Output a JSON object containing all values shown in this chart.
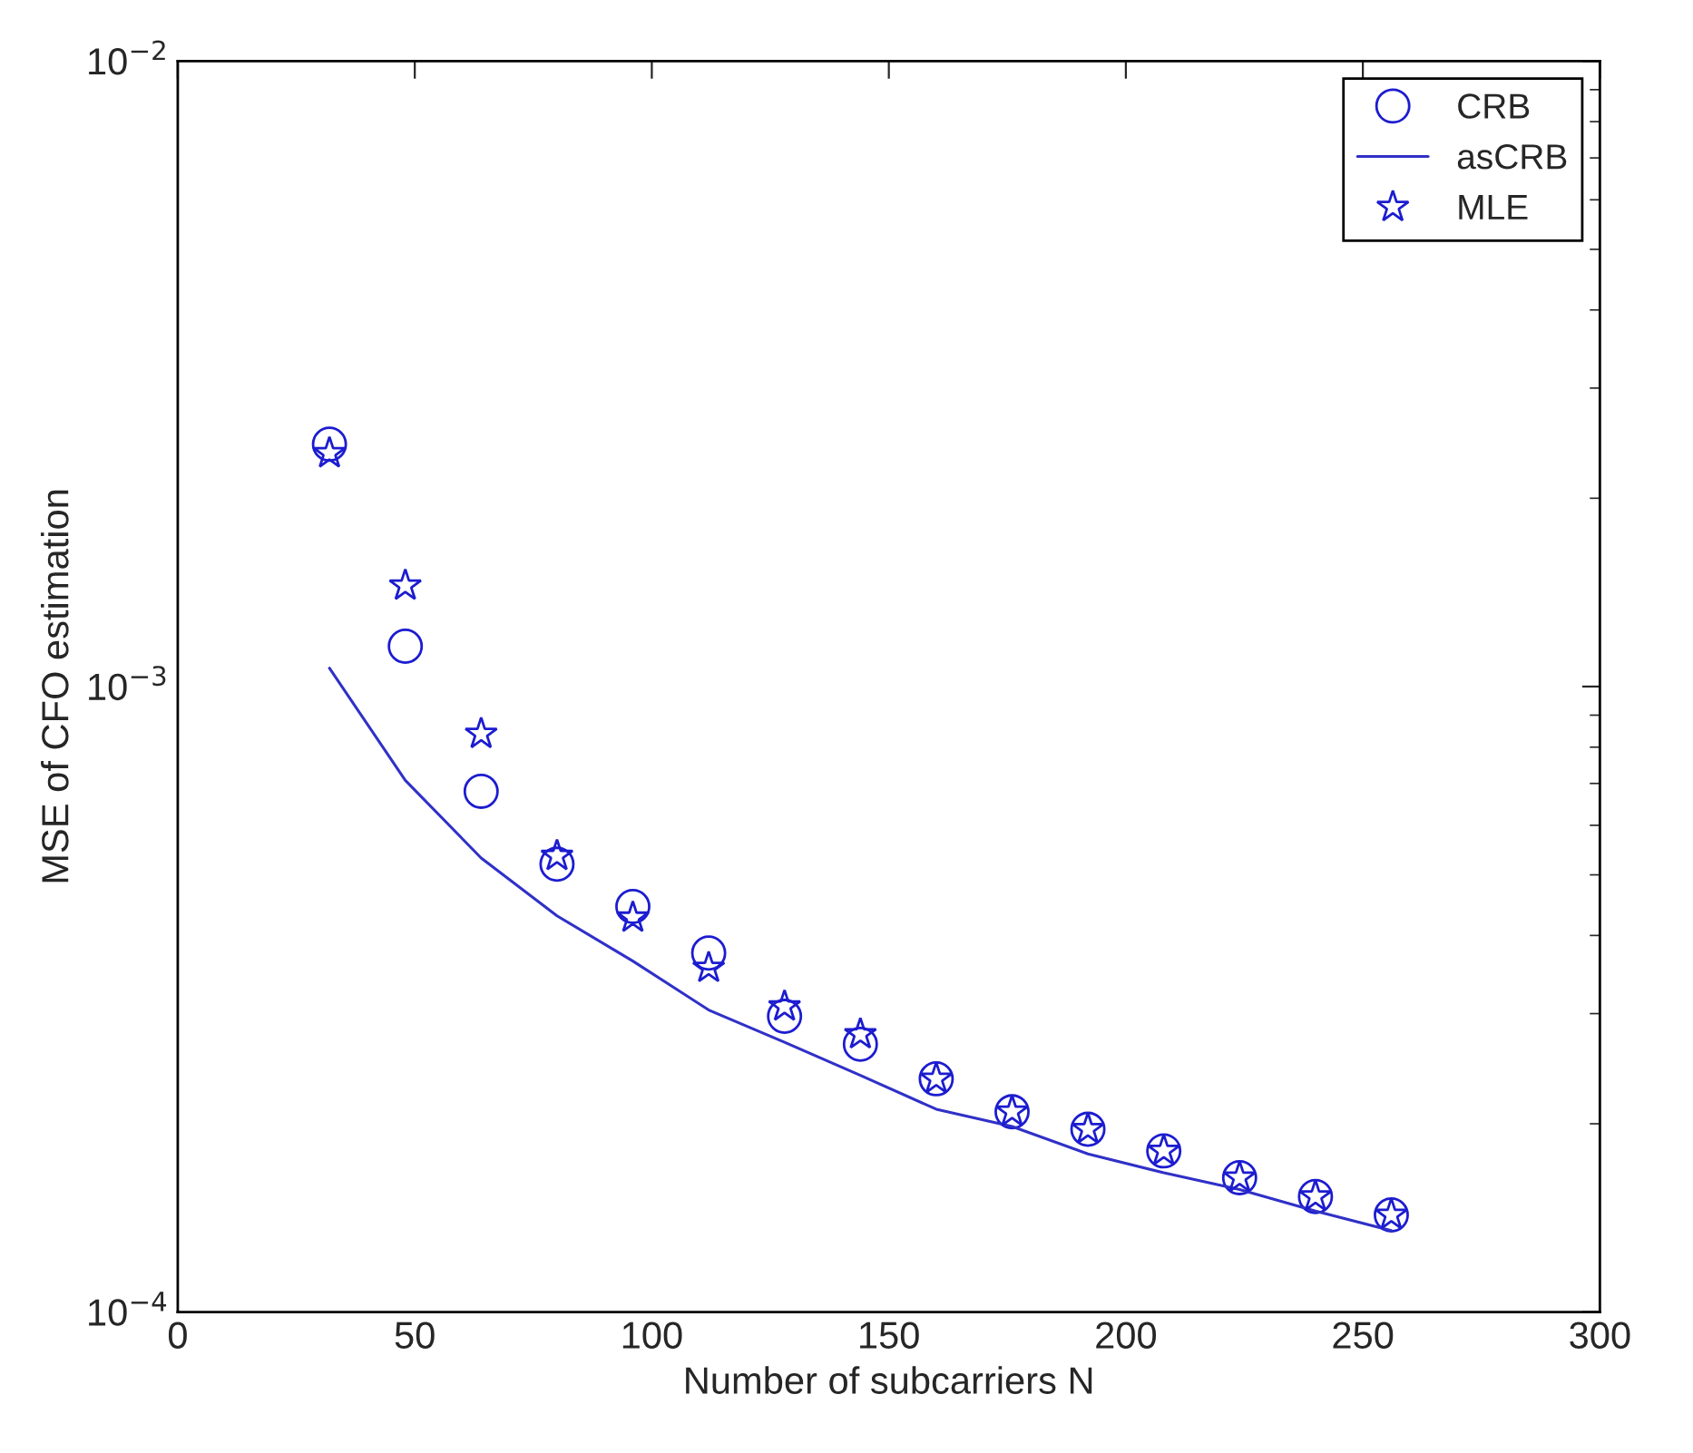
{
  "chart_data": {
    "type": "scatter",
    "xlabel": "Number of subcarriers N",
    "ylabel": "MSE of CFO estimation",
    "x": [
      32,
      48,
      64,
      80,
      96,
      112,
      128,
      144,
      160,
      176,
      192,
      208,
      224,
      240,
      256
    ],
    "series": [
      {
        "name": "CRB",
        "marker": "circle",
        "color": "#1c1cd0",
        "values": [
          0.00244,
          0.00116,
          0.00068,
          0.00052,
          0.000445,
          0.000375,
          0.000297,
          0.000268,
          0.000236,
          0.000209,
          0.000196,
          0.000181,
          0.000164,
          0.000153,
          0.000143
        ]
      },
      {
        "name": "asCRB",
        "type": "line",
        "marker": "none",
        "line_style": "solid",
        "color": "#3030c8",
        "values": [
          0.00107,
          0.000708,
          0.000532,
          0.00043,
          0.000364,
          0.000304,
          0.00027,
          0.000239,
          0.000211,
          0.000198,
          0.000179,
          0.000167,
          0.000157,
          0.000145,
          0.000135
        ]
      },
      {
        "name": "MLE",
        "marker": "star",
        "color": "#1c1cd0",
        "values": [
          0.00236,
          0.00145,
          0.00084,
          0.000536,
          0.000427,
          0.000355,
          0.000308,
          0.000278,
          0.000236,
          0.000209,
          0.000196,
          0.000181,
          0.000164,
          0.000153,
          0.000143
        ]
      }
    ],
    "log": "y",
    "xlim": [
      0,
      300
    ],
    "xticks": [
      0,
      50,
      100,
      150,
      200,
      250,
      300
    ],
    "ylim": [
      0.0001,
      0.01
    ],
    "yticks": [
      {
        "value": 0.0001,
        "label": "10$^{−4}$"
      },
      {
        "value": 0.001,
        "label": "10$^{−3}$"
      },
      {
        "value": 0.01,
        "label": "10$^{−2}$"
      }
    ],
    "grid": false,
    "legend": "top right"
  }
}
